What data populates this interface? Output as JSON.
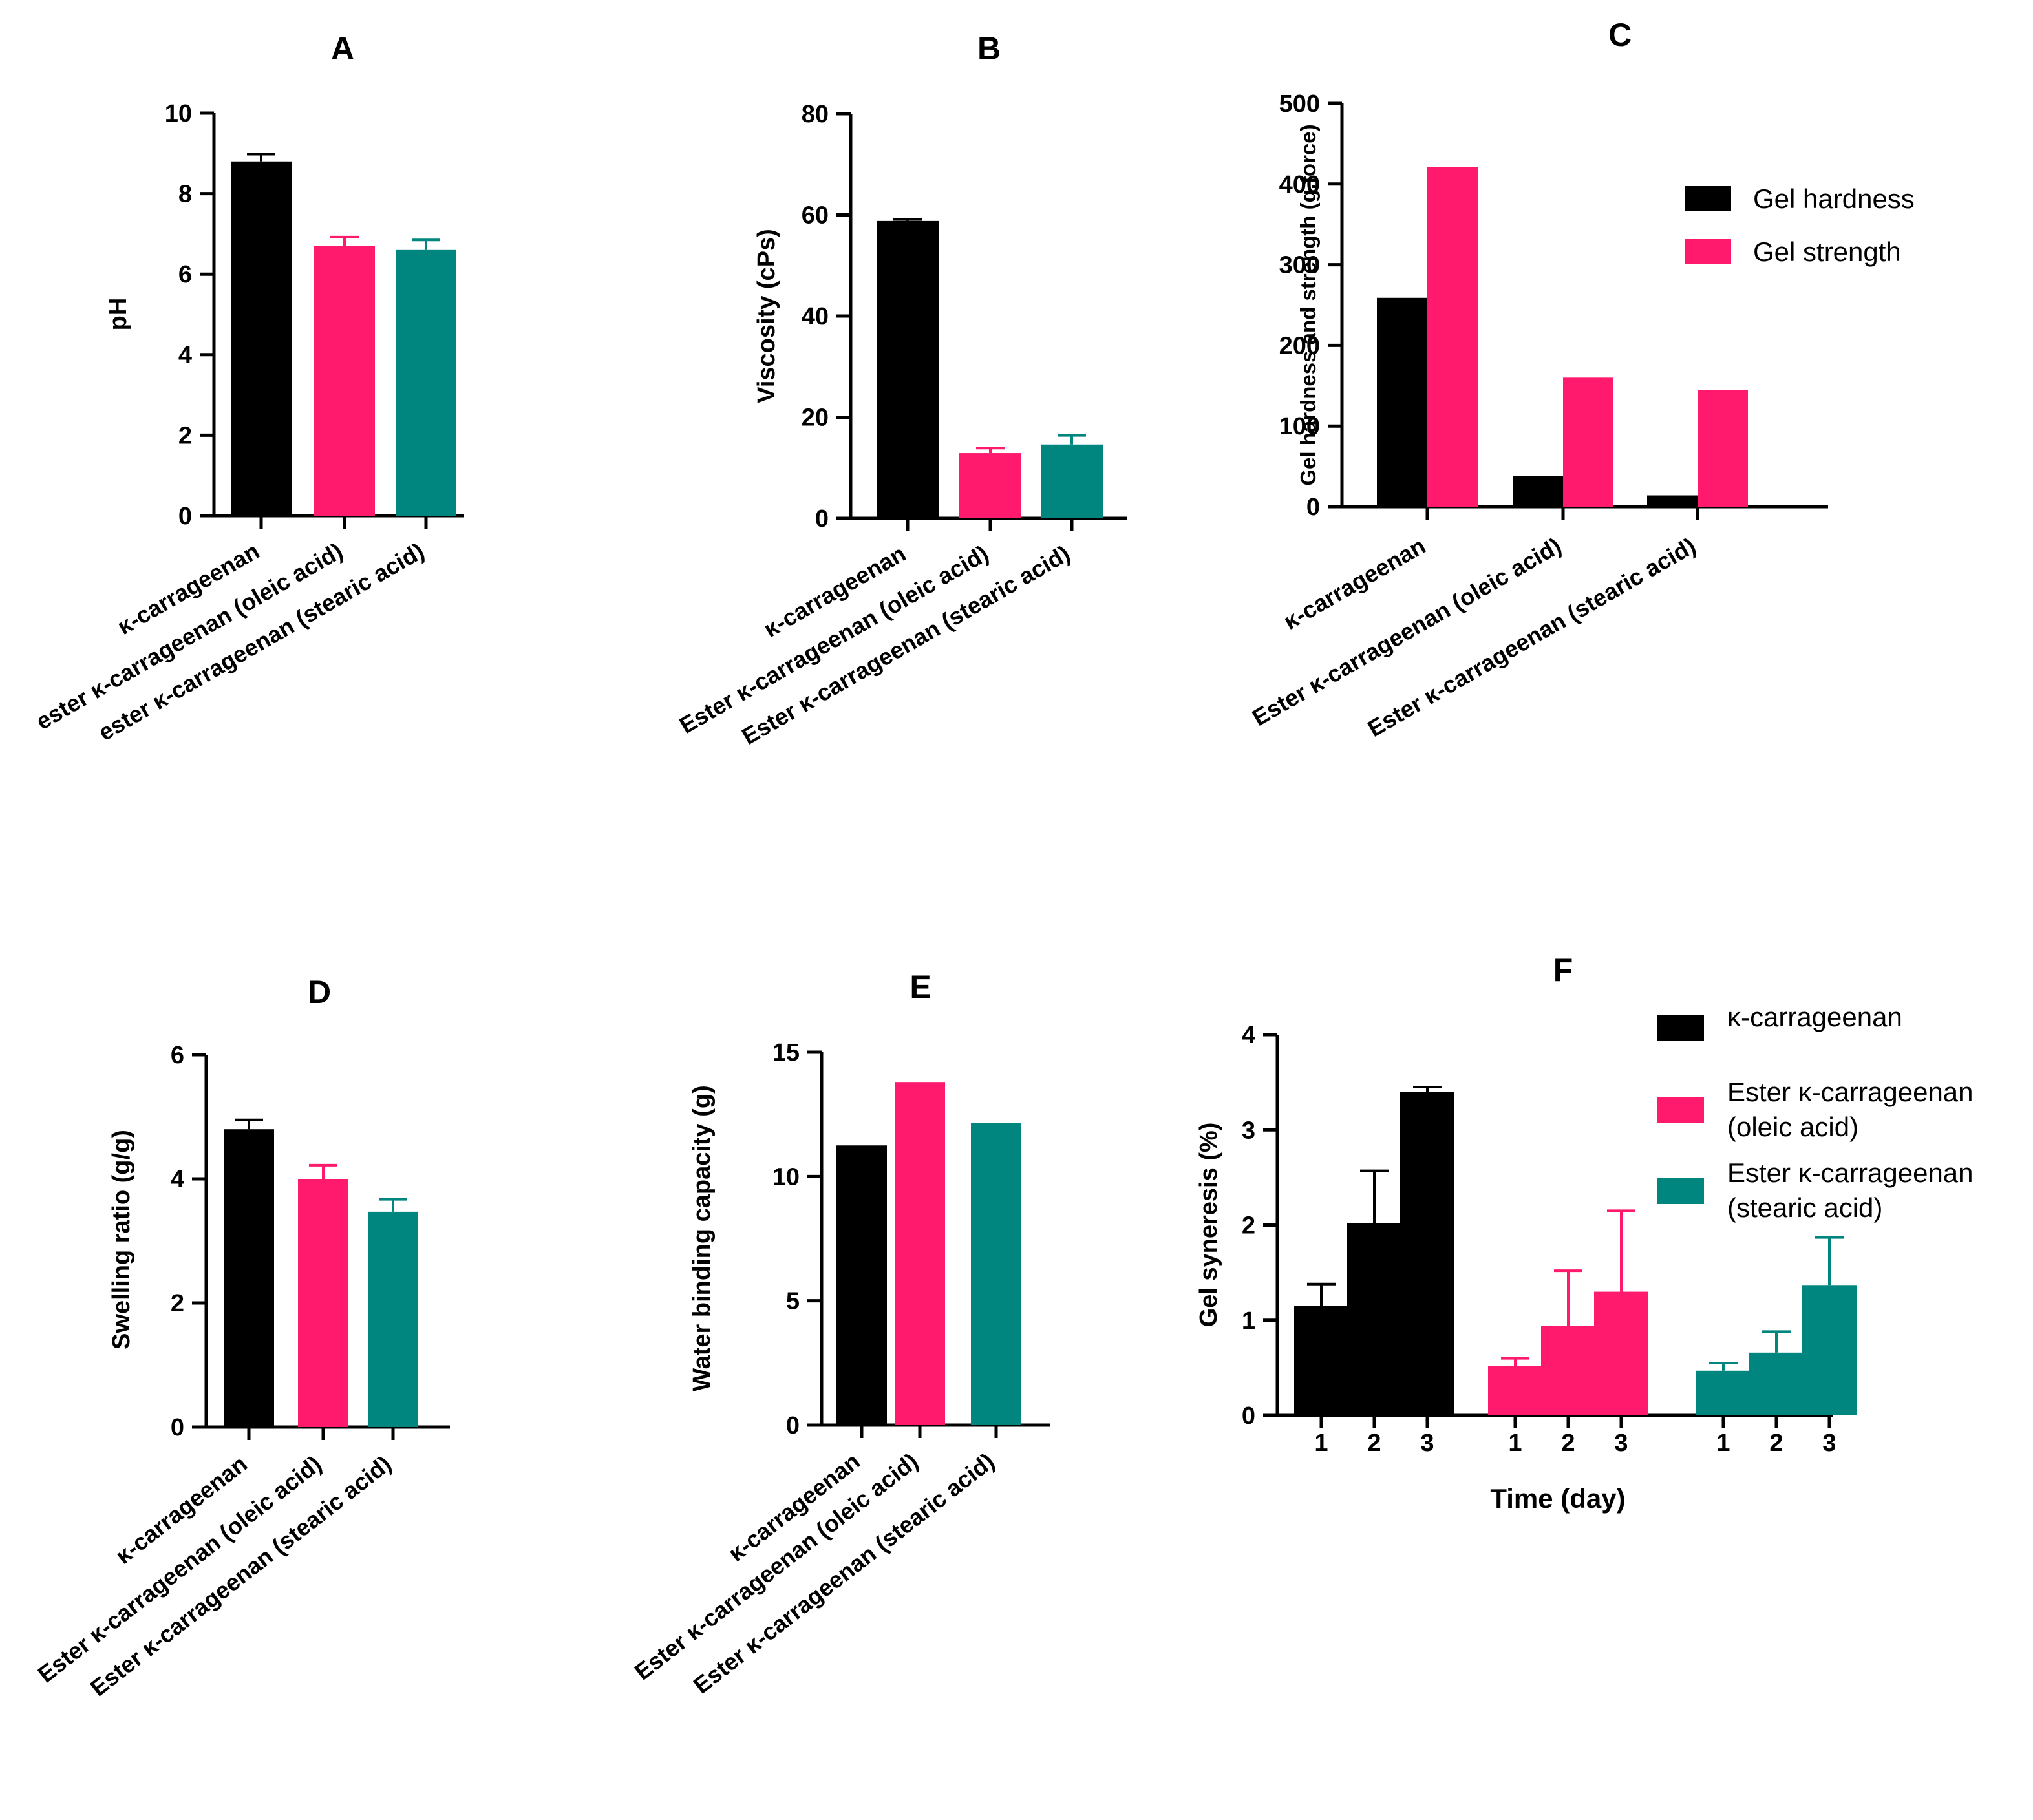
{
  "colors": {
    "k_carrageenan": "#000000",
    "oleic": "#FF1A6E",
    "stearic": "#00857F",
    "gel_hardness": "#000000",
    "gel_strength": "#FF1A6E"
  },
  "chart_data": [
    {
      "panel": "A",
      "type": "bar",
      "title": "A",
      "ylabel": "pH",
      "ylim": [
        0,
        10
      ],
      "yticks": [
        "0",
        "2",
        "4",
        "6",
        "8",
        "10"
      ],
      "categories": [
        "κ-carrageenan",
        "ester κ-carrageenan (oleic acid)",
        "ester κ-carrageenan (stearic acid)"
      ],
      "values": [
        8.8,
        6.7,
        6.6
      ],
      "errors": [
        0.18,
        0.22,
        0.25
      ],
      "bar_colors": [
        "#000000",
        "#FF1A6E",
        "#00857F"
      ]
    },
    {
      "panel": "B",
      "type": "bar",
      "title": "B",
      "ylabel": "Viscosity (cPs)",
      "ylim": [
        0,
        80
      ],
      "yticks": [
        "0",
        "20",
        "40",
        "60",
        "80"
      ],
      "categories": [
        "κ-carrageenan",
        "Ester κ-carrageenan (oleic acid)",
        "Ester κ-carrageenan (stearic acid)"
      ],
      "values": [
        58.8,
        12.9,
        14.6
      ],
      "errors": [
        0.3,
        1.0,
        1.8
      ],
      "bar_colors": [
        "#000000",
        "#FF1A6E",
        "#00857F"
      ]
    },
    {
      "panel": "C",
      "type": "bar",
      "title": "C",
      "ylabel": "Gel hardness and strength (g.force)",
      "ylim": [
        0,
        500
      ],
      "yticks": [
        "0",
        "100",
        "200",
        "300",
        "400",
        "500"
      ],
      "categories": [
        "κ-carrageenan",
        "Ester κ-carrageenan (oleic acid)",
        "Ester κ-carrageenan (stearic acid)"
      ],
      "series": [
        {
          "name": "Gel hardness",
          "values": [
            259,
            38,
            14
          ],
          "color": "#000000"
        },
        {
          "name": "Gel strength",
          "values": [
            421,
            160,
            145
          ],
          "color": "#FF1A6E"
        }
      ],
      "legend": [
        "Gel hardness",
        "Gel strength"
      ]
    },
    {
      "panel": "D",
      "type": "bar",
      "title": "D",
      "ylabel": "Swelling ratio (g/g)",
      "ylim": [
        0,
        6
      ],
      "yticks": [
        "0",
        "2",
        "4",
        "6"
      ],
      "categories": [
        "κ-carrageenan",
        "Ester κ-carrageenan (oleic acid)",
        "Ester κ-carrageenan (stearic acid)"
      ],
      "values": [
        4.8,
        4.0,
        3.47
      ],
      "errors": [
        0.15,
        0.22,
        0.2
      ],
      "bar_colors": [
        "#000000",
        "#FF1A6E",
        "#00857F"
      ]
    },
    {
      "panel": "E",
      "type": "bar",
      "title": "E",
      "ylabel": "Water binding capacity (g)",
      "ylim": [
        0,
        15
      ],
      "yticks": [
        "0",
        "5",
        "10",
        "15"
      ],
      "categories": [
        "κ-carrageenan",
        "Ester κ-carrageenan (oleic acid)",
        "Ester κ-carrageenan (stearic acid)"
      ],
      "values": [
        11.25,
        13.8,
        12.15
      ],
      "bar_colors": [
        "#000000",
        "#FF1A6E",
        "#00857F"
      ]
    },
    {
      "panel": "F",
      "type": "bar",
      "title": "F",
      "ylabel": "Gel syneresis (%)",
      "xlabel": "Time (day)",
      "ylim": [
        0,
        4
      ],
      "yticks": [
        "0",
        "1",
        "2",
        "3",
        "4"
      ],
      "x": [
        "1",
        "2",
        "3"
      ],
      "series": [
        {
          "name": "κ-carrageenan",
          "values": [
            1.15,
            2.02,
            3.4
          ],
          "errors": [
            0.23,
            0.55,
            0.05
          ],
          "color": "#000000"
        },
        {
          "name": "Ester κ-carrageenan (oleic acid)",
          "values": [
            0.52,
            0.94,
            1.3
          ],
          "errors": [
            0.08,
            0.58,
            0.85
          ],
          "color": "#FF1A6E"
        },
        {
          "name": "Ester κ-carrageenan (stearic acid)",
          "values": [
            0.47,
            0.66,
            1.37
          ],
          "errors": [
            0.08,
            0.22,
            0.5
          ],
          "color": "#00857F"
        }
      ],
      "legend": [
        {
          "line1": "κ-carrageenan",
          "line2": ""
        },
        {
          "line1": "Ester κ-carrageenan",
          "line2": "(oleic acid)"
        },
        {
          "line1": "Ester κ-carrageenan",
          "line2": "(stearic acid)"
        }
      ]
    }
  ]
}
